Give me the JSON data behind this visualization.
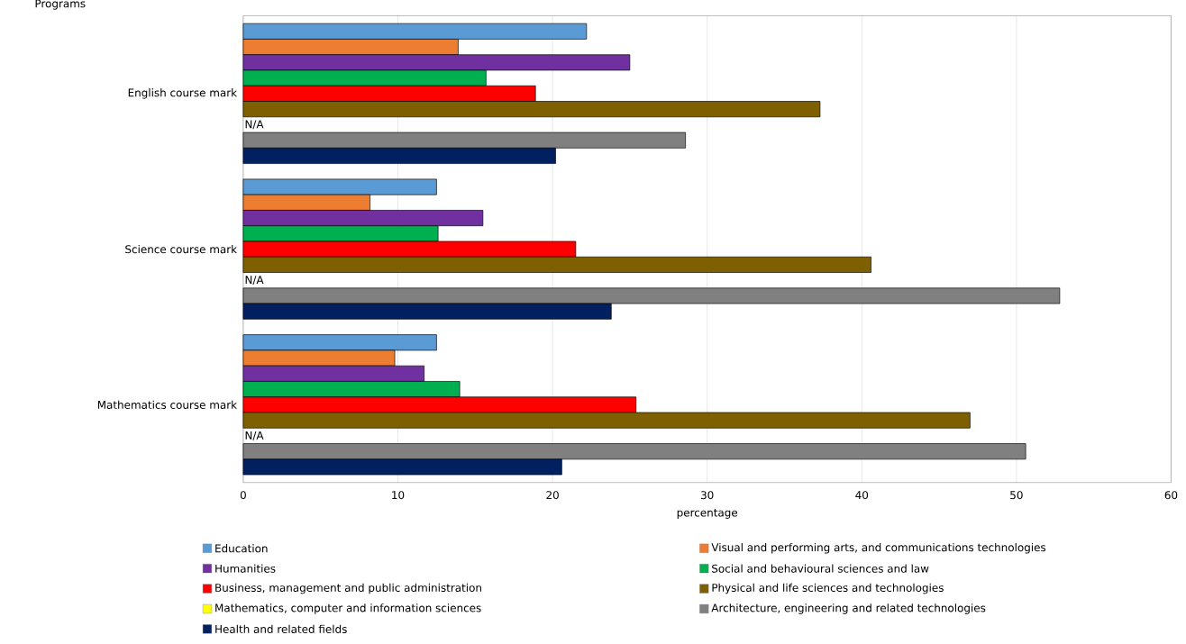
{
  "chart_data": {
    "type": "bar",
    "orientation": "horizontal",
    "xlabel": "percentage",
    "ylabel": "Programs",
    "categories": [
      "English course mark",
      "Science course mark",
      "Mathematics course mark"
    ],
    "xlim": [
      0,
      60
    ],
    "xticks": [
      0,
      10,
      20,
      30,
      40,
      50,
      60
    ],
    "grid": "x",
    "legend": "bottom",
    "series": [
      {
        "name": "Education",
        "color": "#5b9bd5",
        "values": [
          22.2,
          12.5,
          12.5
        ]
      },
      {
        "name": "Visual and performing arts, and communications technologies",
        "color": "#ed7d31",
        "values": [
          13.9,
          8.2,
          9.8
        ]
      },
      {
        "name": "Humanities",
        "color": "#7030a0",
        "values": [
          25.0,
          15.5,
          11.7
        ]
      },
      {
        "name": "Social and behavioural sciences and law",
        "color": "#00b050",
        "values": [
          15.7,
          12.6,
          14.0
        ]
      },
      {
        "name": "Business, management and public administration",
        "color": "#ff0000",
        "values": [
          18.9,
          21.5,
          25.4
        ]
      },
      {
        "name": "Physical and life sciences and technologies",
        "color": "#7f6000",
        "values": [
          37.3,
          40.6,
          47.0
        ]
      },
      {
        "name": "Mathematics, computer and information sciences",
        "color": "#ffff00",
        "values": [
          null,
          null,
          null
        ],
        "value_labels": [
          "N/A",
          "N/A",
          "N/A"
        ]
      },
      {
        "name": "Architecture, engineering and related technologies",
        "color": "#808080",
        "values": [
          28.6,
          52.8,
          50.6
        ]
      },
      {
        "name": "Health and related fields",
        "color": "#002060",
        "values": [
          20.2,
          23.8,
          20.6
        ]
      }
    ]
  }
}
